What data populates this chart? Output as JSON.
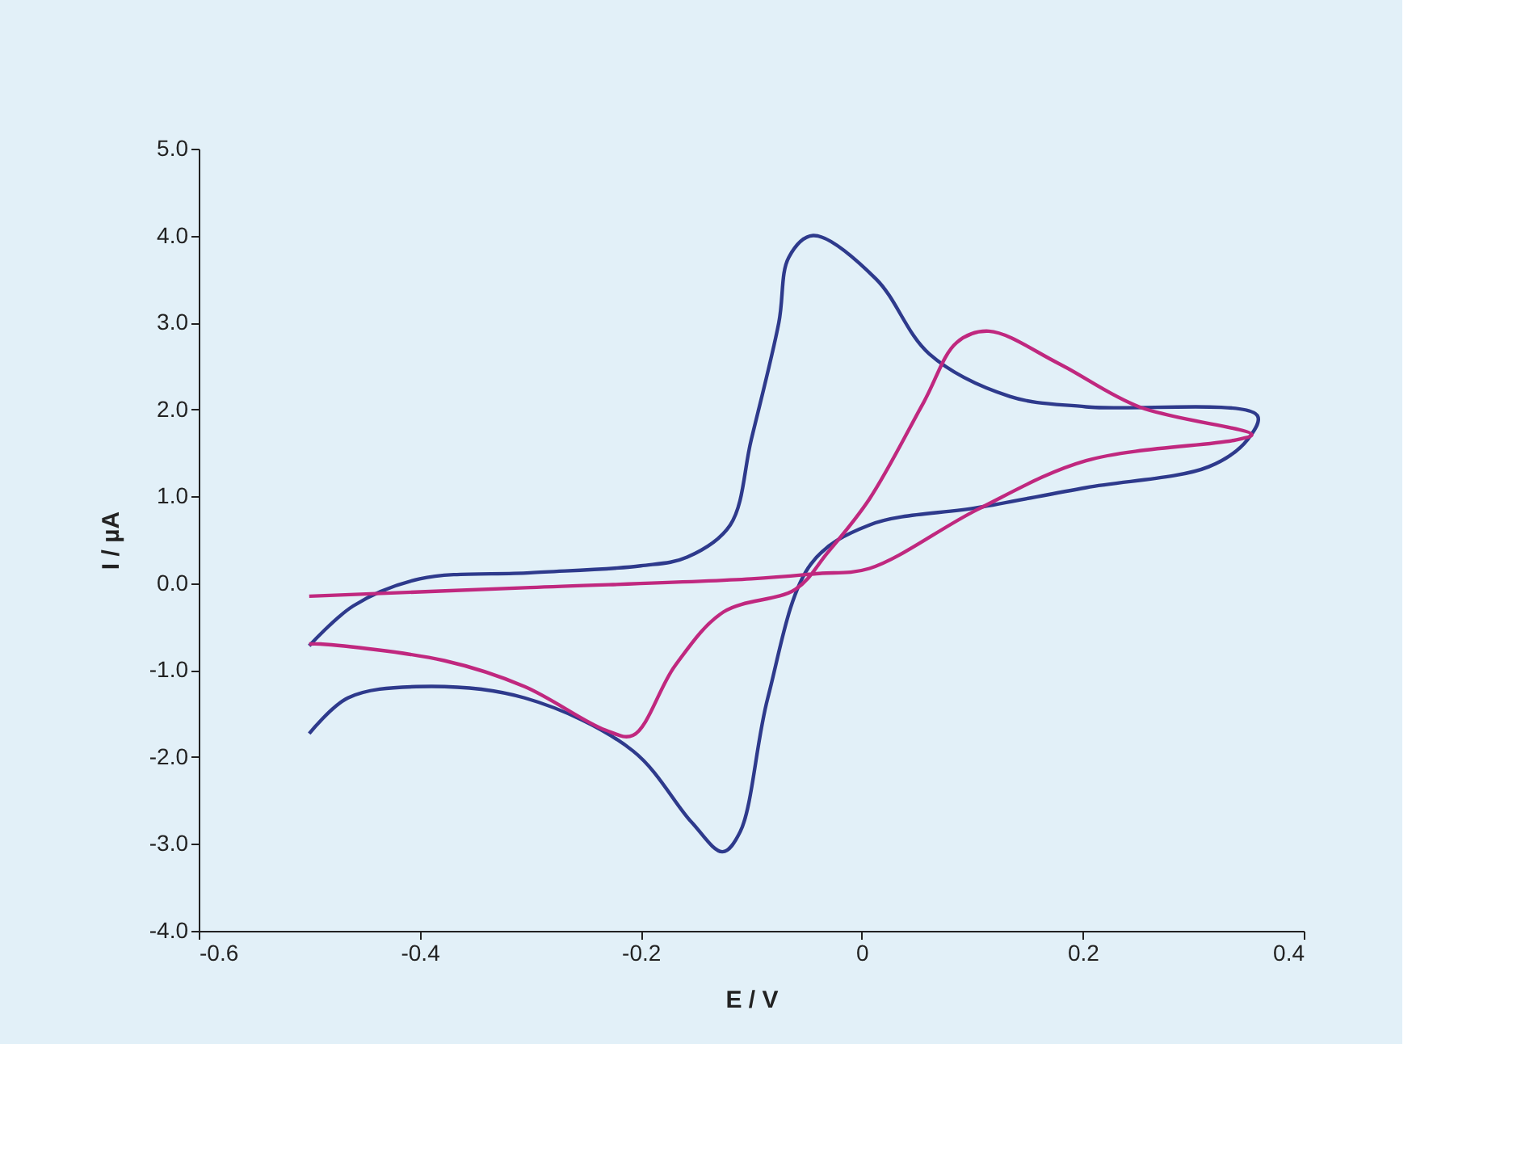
{
  "chart_data": {
    "type": "line",
    "xlabel": "E / V",
    "ylabel": "I / µA",
    "xlim": [
      -0.6,
      0.4
    ],
    "xticks": [
      -0.6,
      -0.4,
      -0.2,
      0,
      0.2,
      0.4
    ],
    "ylim": [
      -4,
      5
    ],
    "yticks": [
      {
        "value": -4,
        "label": "-4.0"
      },
      {
        "value": -3,
        "label": "-3.0"
      },
      {
        "value": -2,
        "label": "-2.0"
      },
      {
        "value": -1,
        "label": "-1.0"
      },
      {
        "value": 0,
        "label": "0.0"
      },
      {
        "value": 1,
        "label": "1.0"
      },
      {
        "value": 2,
        "label": "2.0"
      },
      {
        "value": 3,
        "label": "3.0"
      },
      {
        "value": 4,
        "label": "4.0"
      },
      {
        "value": 5,
        "label": "5.0"
      }
    ],
    "grid": false,
    "marker": "none",
    "line_style": "solid",
    "series": [
      {
        "color": "#2e3a8c",
        "x": [
          -0.5,
          -0.46,
          -0.4,
          -0.3,
          -0.2,
          -0.158,
          -0.119,
          -0.1,
          -0.075,
          -0.066,
          -0.044,
          0.013,
          0.061,
          0.134,
          0.203,
          0.358,
          0.349,
          0.314,
          0.203,
          0.105,
          0.007,
          -0.046,
          -0.085,
          -0.11,
          -0.126,
          -0.154,
          -0.207,
          -0.305,
          -0.403,
          -0.465,
          -0.5
        ],
        "values": [
          -0.72,
          -0.26,
          0.05,
          0.12,
          0.2,
          0.3,
          0.67,
          1.65,
          3.0,
          3.75,
          4.0,
          3.5,
          2.64,
          2.15,
          2.03,
          1.93,
          1.65,
          1.34,
          1.1,
          0.87,
          0.67,
          0.22,
          -1.32,
          -2.86,
          -3.09,
          -2.75,
          -1.93,
          -1.32,
          -1.19,
          -1.32,
          -1.73
        ]
      },
      {
        "color": "#c0287f",
        "x": [
          -0.5,
          -0.3,
          -0.1,
          -0.041,
          0.007,
          0.105,
          0.203,
          0.339,
          0.353,
          0.251,
          0.178,
          0.115,
          0.086,
          0.056,
          0.007,
          -0.031,
          -0.06,
          -0.125,
          -0.169,
          -0.207,
          -0.232,
          -0.305,
          -0.378,
          -0.49,
          -0.5
        ],
        "values": [
          -0.15,
          -0.05,
          0.05,
          0.11,
          0.17,
          0.85,
          1.41,
          1.65,
          1.71,
          2.03,
          2.53,
          2.9,
          2.77,
          2.08,
          0.97,
          0.35,
          -0.07,
          -0.33,
          -0.95,
          -1.75,
          -1.69,
          -1.19,
          -0.89,
          -0.7,
          -0.7
        ]
      }
    ]
  }
}
